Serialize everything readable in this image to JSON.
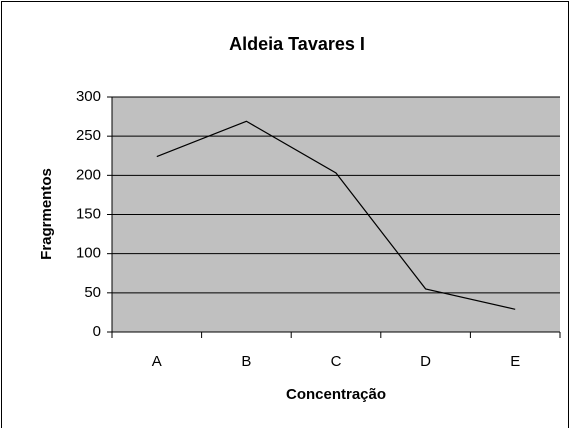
{
  "chart_data": {
    "type": "line",
    "title": "Aldeia Tavares I",
    "x_label": "Concentração",
    "y_label": "Fragrmentos",
    "categories": [
      "A",
      "B",
      "C",
      "D",
      "E"
    ],
    "series": [
      {
        "name": "Fragrmentos",
        "color": "#000000",
        "values": [
          224,
          269,
          203,
          55,
          29
        ]
      }
    ],
    "ylim": [
      0,
      300
    ],
    "yticks": [
      0,
      50,
      100,
      150,
      200,
      250,
      300
    ],
    "grid": true
  }
}
